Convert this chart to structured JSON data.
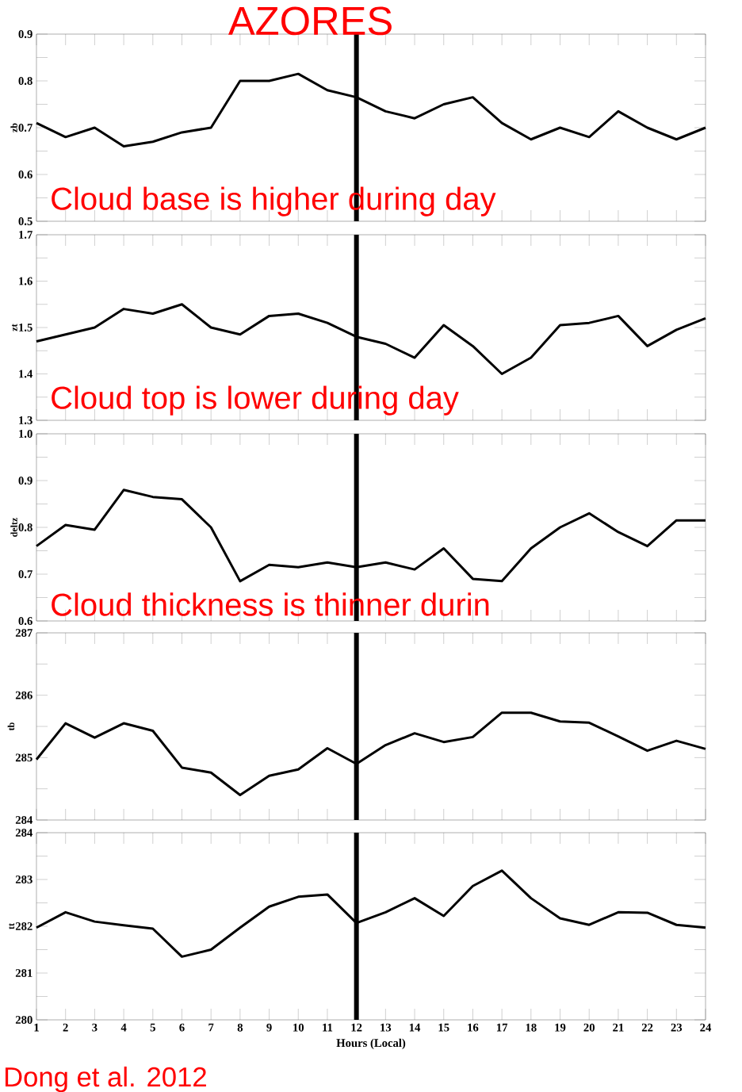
{
  "chart_data": [
    {
      "type": "line",
      "title": "AZORES",
      "ylabel": "zb",
      "tick_labels": "y",
      "x": [
        1,
        2,
        3,
        4,
        5,
        6,
        7,
        8,
        9,
        10,
        11,
        12,
        13,
        14,
        15,
        16,
        17,
        18,
        19,
        20,
        21,
        22,
        23,
        24
      ],
      "series": [
        {
          "color": "#000000",
          "values": [
            0.71,
            0.68,
            0.7,
            0.66,
            0.67,
            0.69,
            0.7,
            0.8,
            0.8,
            0.815,
            0.78,
            0.765,
            0.735,
            0.72,
            0.75,
            0.765,
            0.71,
            0.675,
            0.7,
            0.68,
            0.735,
            0.7,
            0.675,
            0.7
          ]
        }
      ],
      "xlim": [
        1,
        24
      ],
      "xticks": [
        1,
        2,
        3,
        4,
        5,
        6,
        7,
        8,
        9,
        10,
        11,
        12,
        13,
        14,
        15,
        16,
        17,
        18,
        19,
        20,
        21,
        22,
        23,
        24
      ],
      "ylim": [
        0.5,
        0.9
      ],
      "yticks": [
        0.5,
        {
          "value": 0.55,
          "label": null
        },
        0.6,
        {
          "value": 0.65,
          "label": null
        },
        0.7,
        {
          "value": 0.75,
          "label": null
        },
        0.8,
        {
          "value": 0.85,
          "label": null
        },
        0.9
      ],
      "ref_lines": [
        {
          "axis": "x",
          "value": 12,
          "color": "#000000"
        }
      ],
      "annotations": [
        "Cloud base is higher during day"
      ]
    },
    {
      "type": "line",
      "ylabel": "zt",
      "tick_labels": "y",
      "x": [
        1,
        2,
        3,
        4,
        5,
        6,
        7,
        8,
        9,
        10,
        11,
        12,
        13,
        14,
        15,
        16,
        17,
        18,
        19,
        20,
        21,
        22,
        23,
        24
      ],
      "series": [
        {
          "color": "#000000",
          "values": [
            1.47,
            1.485,
            1.5,
            1.54,
            1.53,
            1.55,
            1.5,
            1.485,
            1.525,
            1.53,
            1.51,
            1.48,
            1.465,
            1.435,
            1.505,
            1.46,
            1.4,
            1.435,
            1.505,
            1.51,
            1.525,
            1.46,
            1.495,
            1.52
          ]
        }
      ],
      "xlim": [
        1,
        24
      ],
      "xticks": [
        1,
        2,
        3,
        4,
        5,
        6,
        7,
        8,
        9,
        10,
        11,
        12,
        13,
        14,
        15,
        16,
        17,
        18,
        19,
        20,
        21,
        22,
        23,
        24
      ],
      "ylim": [
        1.3,
        1.7
      ],
      "yticks": [
        1.3,
        {
          "value": 1.35,
          "label": null
        },
        1.4,
        {
          "value": 1.45,
          "label": null
        },
        1.5,
        {
          "value": 1.55,
          "label": null
        },
        1.6,
        {
          "value": 1.65,
          "label": null
        },
        1.7
      ],
      "ref_lines": [
        {
          "axis": "x",
          "value": 12,
          "color": "#000000"
        }
      ],
      "annotations": [
        "Cloud top is lower during day"
      ]
    },
    {
      "type": "line",
      "ylabel": "deltz",
      "tick_labels": "y",
      "x": [
        1,
        2,
        3,
        4,
        5,
        6,
        7,
        8,
        9,
        10,
        11,
        12,
        13,
        14,
        15,
        16,
        17,
        18,
        19,
        20,
        21,
        22,
        23,
        24
      ],
      "series": [
        {
          "color": "#000000",
          "values": [
            0.76,
            0.805,
            0.795,
            0.88,
            0.865,
            0.86,
            0.8,
            0.685,
            0.72,
            0.715,
            0.725,
            0.715,
            0.725,
            0.71,
            0.755,
            0.69,
            0.685,
            0.755,
            0.8,
            0.83,
            0.79,
            0.76,
            0.815,
            0.815
          ]
        }
      ],
      "xlim": [
        1,
        24
      ],
      "xticks": [
        1,
        2,
        3,
        4,
        5,
        6,
        7,
        8,
        9,
        10,
        11,
        12,
        13,
        14,
        15,
        16,
        17,
        18,
        19,
        20,
        21,
        22,
        23,
        24
      ],
      "ylim": [
        0.6,
        1.0
      ],
      "yticks": [
        0.6,
        {
          "value": 0.65,
          "label": null
        },
        0.7,
        {
          "value": 0.75,
          "label": null
        },
        0.8,
        {
          "value": 0.85,
          "label": null
        },
        0.9,
        {
          "value": 0.95,
          "label": null
        },
        {
          "value": 1.0,
          "label": "1.0"
        }
      ],
      "ref_lines": [
        {
          "axis": "x",
          "value": 12,
          "color": "#000000"
        }
      ],
      "annotations": [
        "Cloud thickness is thinner durin"
      ]
    },
    {
      "type": "line",
      "ylabel": "tb",
      "tick_labels": "y",
      "x": [
        1,
        2,
        3,
        4,
        5,
        6,
        7,
        8,
        9,
        10,
        11,
        12,
        13,
        14,
        15,
        16,
        17,
        18,
        19,
        20,
        21,
        22,
        23,
        24
      ],
      "series": [
        {
          "color": "#000000",
          "values": [
            284.97,
            285.55,
            285.32,
            285.55,
            285.43,
            284.84,
            284.76,
            284.4,
            284.71,
            284.81,
            285.15,
            284.9,
            285.2,
            285.39,
            285.25,
            285.33,
            285.72,
            285.72,
            285.58,
            285.56,
            285.34,
            285.11,
            285.27,
            285.14
          ]
        }
      ],
      "xlim": [
        1,
        24
      ],
      "xticks": [
        1,
        2,
        3,
        4,
        5,
        6,
        7,
        8,
        9,
        10,
        11,
        12,
        13,
        14,
        15,
        16,
        17,
        18,
        19,
        20,
        21,
        22,
        23,
        24
      ],
      "ylim": [
        284,
        287
      ],
      "yticks": [
        284,
        {
          "value": 284.5,
          "label": null
        },
        285,
        {
          "value": 285.5,
          "label": null
        },
        286,
        {
          "value": 286.5,
          "label": null
        },
        287
      ],
      "ref_lines": [
        {
          "axis": "x",
          "value": 12,
          "color": "#000000"
        }
      ]
    },
    {
      "type": "line",
      "ylabel": "tt",
      "xlabel": "Hours (Local)",
      "x": [
        1,
        2,
        3,
        4,
        5,
        6,
        7,
        8,
        9,
        10,
        11,
        12,
        13,
        14,
        15,
        16,
        17,
        18,
        19,
        20,
        21,
        22,
        23,
        24
      ],
      "series": [
        {
          "color": "#000000",
          "values": [
            281.97,
            282.3,
            282.1,
            282.02,
            281.95,
            281.35,
            281.5,
            281.97,
            282.42,
            282.63,
            282.68,
            282.07,
            282.3,
            282.6,
            282.22,
            282.86,
            283.19,
            282.6,
            282.17,
            282.03,
            282.3,
            282.29,
            282.03,
            281.97
          ]
        }
      ],
      "xlim": [
        1,
        24
      ],
      "xticks": [
        1,
        2,
        3,
        4,
        5,
        6,
        7,
        8,
        9,
        10,
        11,
        12,
        13,
        14,
        15,
        16,
        17,
        18,
        19,
        20,
        21,
        22,
        23,
        24
      ],
      "ylim": [
        280,
        284
      ],
      "yticks": [
        280,
        {
          "value": 280.5,
          "label": null
        },
        281,
        {
          "value": 281.5,
          "label": null
        },
        282,
        {
          "value": 282.5,
          "label": null
        },
        283,
        {
          "value": 283.5,
          "label": null
        },
        284
      ],
      "ref_lines": [
        {
          "axis": "x",
          "value": 12,
          "color": "#000000"
        }
      ],
      "annotations": [
        "Dong et al. 2012"
      ]
    }
  ]
}
